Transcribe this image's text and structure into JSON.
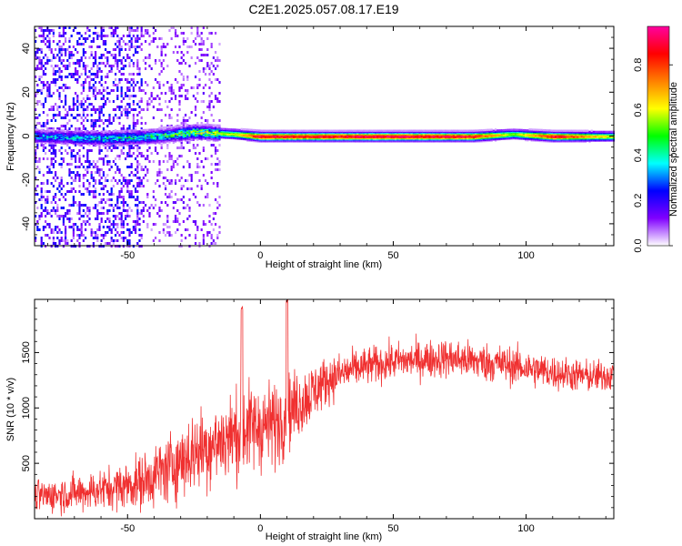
{
  "title": "C2E1.2025.057.08.17.E19",
  "chart_data": [
    {
      "type": "heatmap",
      "xlabel": "Height of straight line (km)",
      "ylabel": "Frequency (Hz)",
      "xlim": [
        -85,
        133
      ],
      "ylim": [
        -50,
        50
      ],
      "xticks": [
        -50,
        0,
        50,
        100
      ],
      "yticks": [
        -40,
        -20,
        0,
        20,
        40
      ],
      "colorbar": {
        "label": "Normalized spectral amplitude",
        "range": [
          0,
          0.97
        ],
        "ticks": [
          0.0,
          0.2,
          0.4,
          0.6,
          0.8
        ],
        "tick_labels": [
          "0.0",
          "0.2",
          "0.4",
          "0.6",
          "0.8"
        ],
        "colormap": [
          "#ffffff",
          "#8000ff",
          "#0000ff",
          "#00ffff",
          "#00ff00",
          "#ffff00",
          "#ff8000",
          "#ff0000",
          "#ff00a0"
        ]
      },
      "band": [
        {
          "x": -85,
          "center": 0,
          "amp": 0.35
        },
        {
          "x": -60,
          "center": -1,
          "amp": 0.4
        },
        {
          "x": -40,
          "center": 0,
          "amp": 0.45
        },
        {
          "x": -25,
          "center": 2,
          "amp": 0.6
        },
        {
          "x": -10,
          "center": 1,
          "amp": 0.6
        },
        {
          "x": 0,
          "center": 0,
          "amp": 0.95
        },
        {
          "x": 10,
          "center": 0,
          "amp": 0.9
        },
        {
          "x": 50,
          "center": 0,
          "amp": 0.95
        },
        {
          "x": 80,
          "center": 0,
          "amp": 0.9
        },
        {
          "x": 95,
          "center": 1,
          "amp": 0.55
        },
        {
          "x": 110,
          "center": 0,
          "amp": 0.92
        },
        {
          "x": 133,
          "center": 0,
          "amp": 0.6
        }
      ]
    },
    {
      "type": "line",
      "xlabel": "Height of straight line (km)",
      "ylabel": "SNR (10 * v/v)",
      "xlim": [
        -85,
        133
      ],
      "ylim": [
        0,
        1980
      ],
      "xticks": [
        -50,
        0,
        50,
        100
      ],
      "yticks": [
        500,
        1000,
        1500
      ],
      "color": "#f03030",
      "series": [
        {
          "x": [
            -85,
            -70,
            -55,
            -45,
            -35,
            -25,
            -15,
            -5,
            5,
            15,
            25,
            35,
            50,
            70,
            90,
            110,
            125,
            133
          ],
          "mean": [
            200,
            230,
            280,
            330,
            450,
            600,
            700,
            820,
            850,
            1050,
            1250,
            1350,
            1420,
            1450,
            1400,
            1320,
            1280,
            1300
          ],
          "spread": [
            150,
            170,
            200,
            250,
            320,
            380,
            400,
            420,
            400,
            320,
            220,
            180,
            170,
            180,
            180,
            160,
            150,
            150
          ]
        }
      ],
      "spikes": [
        {
          "x": -7,
          "y": 1920
        },
        {
          "x": 10,
          "y": 1980
        }
      ]
    }
  ]
}
